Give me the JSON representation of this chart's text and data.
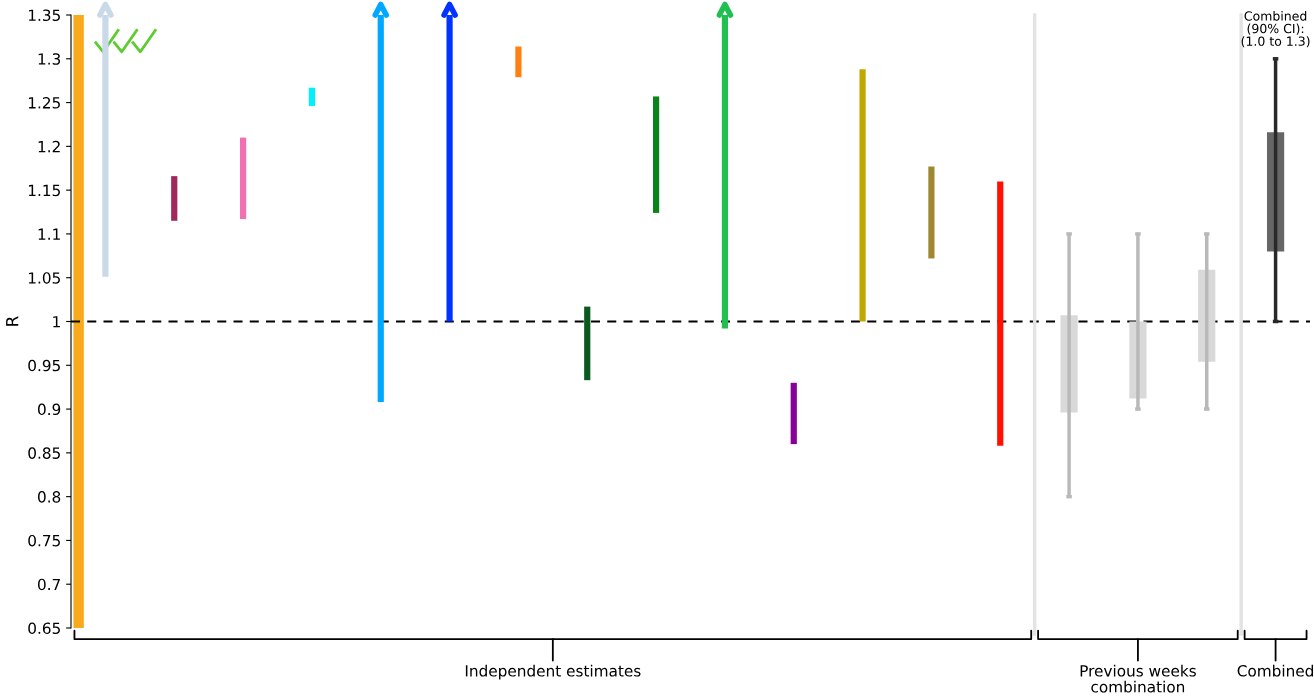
{
  "chart_data": {
    "type": "bar",
    "ylabel": "R",
    "categories": [
      null,
      null,
      null,
      null,
      null,
      null,
      null,
      null,
      null,
      null,
      null,
      null,
      null,
      null,
      null,
      null,
      null,
      null
    ],
    "series": [
      {
        "colors": [
          "#c9d9e8",
          "#a0285a",
          "#f070b0",
          "#00f0ff",
          "#00a8ff",
          "#0033ff",
          "#ff8010",
          "#0a5a20",
          "#08841a",
          "#20c050",
          "#880099",
          "#c0a800",
          "#a08830",
          "#ff1000",
          null,
          null,
          null,
          null
        ],
        "base": [
          1.051,
          1.115,
          1.117,
          1.246,
          0.908,
          1.0,
          1.279,
          0.933,
          1.124,
          0.992,
          0.86,
          1.0,
          1.072,
          0.858,
          null,
          null,
          null,
          null
        ],
        "values": [
          0.299,
          0.051,
          0.093,
          0.021,
          0.442,
          0.35,
          0.035,
          0.084,
          0.133,
          0.358,
          0.07,
          0.288,
          0.105,
          0.302,
          null,
          null,
          null,
          null
        ]
      },
      {
        "colors": [
          null,
          null,
          null,
          null,
          null,
          null,
          null,
          null,
          null,
          null,
          null,
          null,
          null,
          null,
          "#d9d9d9",
          "#d9d9d9",
          "#d9d9d9",
          "#666666"
        ],
        "base": [
          null,
          null,
          null,
          null,
          null,
          null,
          null,
          null,
          null,
          null,
          null,
          null,
          null,
          null,
          0.896,
          0.912,
          0.954,
          1.08
        ],
        "values": [
          null,
          null,
          null,
          null,
          null,
          null,
          null,
          null,
          null,
          null,
          null,
          null,
          null,
          null,
          0.111,
          0.088,
          0.105,
          0.136
        ],
        "errors": [
          null,
          null,
          null,
          null,
          null,
          null,
          null,
          null,
          null,
          null,
          null,
          null,
          null,
          null,
          [
            0.8,
            1.1
          ],
          [
            0.9,
            1.1
          ],
          [
            0.9,
            1.1
          ],
          [
            1.0,
            1.3
          ]
        ]
      }
    ],
    "ylim": [
      0.65,
      1.35
    ],
    "yticks": [
      0.65,
      0.7,
      0.75,
      0.8,
      0.85,
      0.9,
      0.95,
      1,
      1.05,
      1.1,
      1.15,
      1.2,
      1.25,
      1.3,
      1.35
    ],
    "ref_lines": [
      {
        "axis": "y",
        "value": 1,
        "color": "#000000",
        "line_style": "dashed"
      }
    ],
    "annotations": [
      "Independent estimates",
      "Previous weeks\ncombination",
      "Combined",
      "Combined\n(90% CI):\n(1.0 to 1.3)"
    ],
    "grid": false
  }
}
